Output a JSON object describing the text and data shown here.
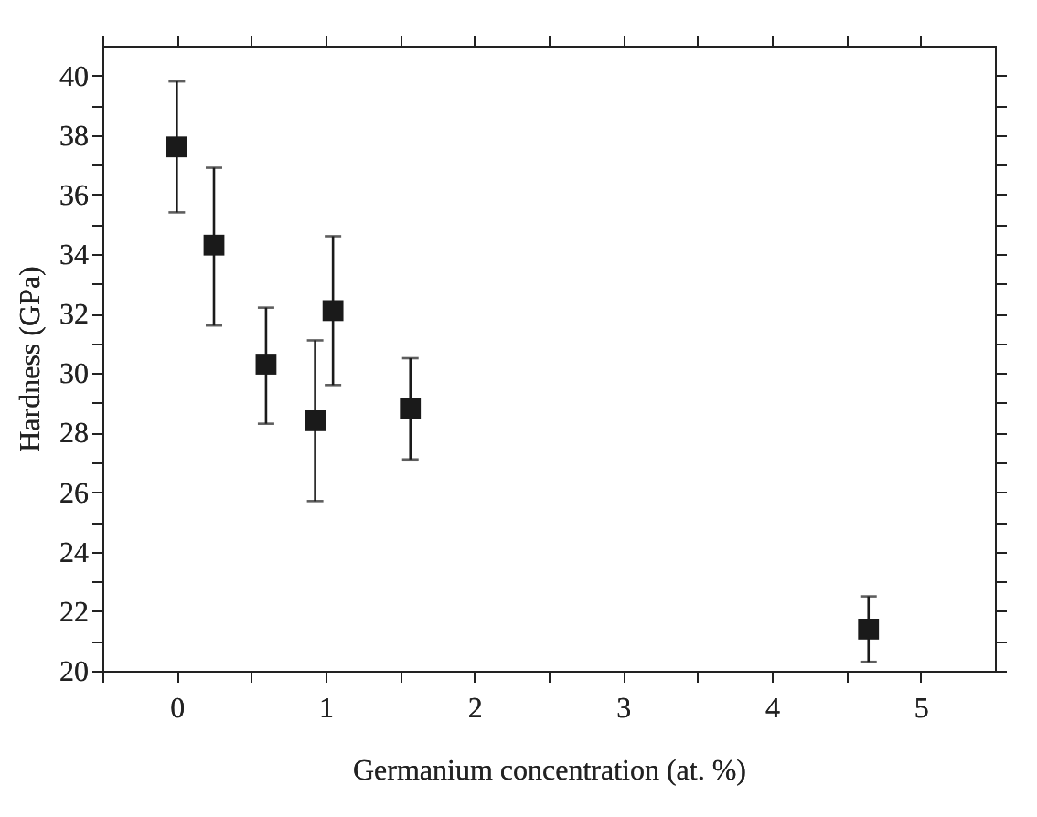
{
  "chart_data": {
    "type": "scatter",
    "xlabel": "Germanium concentration (at. %)",
    "ylabel": "Hardness (GPa)",
    "x": [
      0,
      0.25,
      0.6,
      0.93,
      1.05,
      1.57,
      4.65
    ],
    "values": [
      37.6,
      34.3,
      30.3,
      28.4,
      32.1,
      28.8,
      21.4
    ],
    "errors": [
      [
        35.4,
        39.8
      ],
      [
        31.6,
        36.9
      ],
      [
        28.3,
        32.2
      ],
      [
        25.7,
        31.1
      ],
      [
        29.6,
        34.6
      ],
      [
        27.1,
        30.5
      ],
      [
        20.3,
        22.5
      ]
    ],
    "color": "#1a1a1a",
    "marker": "square",
    "grid": false,
    "xlim": [
      -0.5,
      5.5
    ],
    "ylim": [
      20,
      41
    ],
    "xticks": [
      {
        "value": -0.5,
        "label": null
      },
      0,
      {
        "value": 0.5,
        "label": null
      },
      1,
      {
        "value": 1.5,
        "label": null
      },
      2,
      {
        "value": 2.5,
        "label": null
      },
      3,
      {
        "value": 3.5,
        "label": null
      },
      4,
      {
        "value": 4.5,
        "label": null
      },
      5
    ],
    "yticks": [
      20,
      {
        "value": 21,
        "label": null
      },
      22,
      {
        "value": 23,
        "label": null
      },
      24,
      {
        "value": 25,
        "label": null
      },
      26,
      {
        "value": 27,
        "label": null
      },
      28,
      {
        "value": 29,
        "label": null
      },
      30,
      {
        "value": 31,
        "label": null
      },
      32,
      {
        "value": 33,
        "label": null
      },
      34,
      {
        "value": 35,
        "label": null
      },
      36,
      {
        "value": 37,
        "label": null
      },
      38,
      {
        "value": 39,
        "label": null
      },
      40
    ]
  }
}
